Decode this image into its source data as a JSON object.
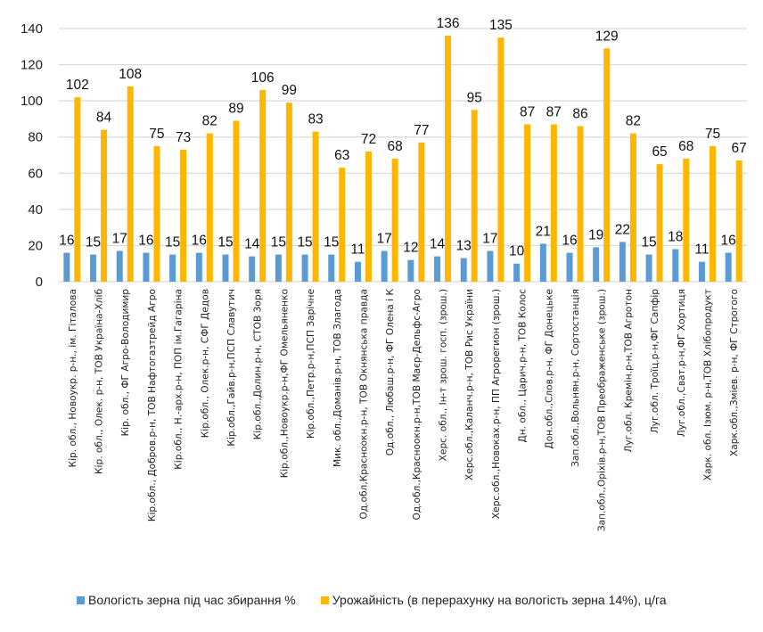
{
  "chart_data": {
    "type": "bar",
    "title": "",
    "xlabel": "",
    "ylabel": "",
    "ylim": [
      0,
      140
    ],
    "yticks": [
      0,
      20,
      40,
      60,
      80,
      100,
      120,
      140
    ],
    "grid": true,
    "legend_position": "bottom",
    "categories": [
      "Кір. обл., Новоукр. р-н., ім. Гіталова",
      "Кір. обл., Олек. р-н, ТОВ Україна-Хліб",
      "Кір. обл., ФГ Агро-Володимир",
      "Кір.обл., Добров.р-н, ТОВ Нафтогазтрейд Агро",
      "Кір.обл., Н.-арх.р-н, ПОП ім.Гагаріна",
      "Кір.обл., Олек.р-н, СФГ Дедов",
      "Кір.обл.,Гайв.р-н,ПСП Славутич",
      "Кір.обл.,Долин.р-н, СТОВ Зоря",
      "Кір.обл.,Новоукр.р-н,ФГ Омельяненко",
      "Кір.обл.,Петр.р-н,ПСП Зарічне",
      "Мик. обл.,Доманів.р-н, ТОВ Злагода",
      "Од.обл,Красноокн.р-н, ТОВ Окнянська правда",
      "Од.обл., Любаш.р-н, ФГ Олена і К",
      "Од.обл.,Красноокн.р-н,ТОВ Маєр-Дельфс-Агро",
      "Херс. обл., Ін-т зрош. госп. (зрош.)",
      "Херс.обл.,Каланч.р-н, ТОВ Рис України",
      "Херс.обл.,Новокax.р-н, ПП Агрорегион (зрош.)",
      "Дн. обл., Царич.р-н, ТОВ Колос",
      "Дон.обл.,Слов.р-н, ФГ Донецьке",
      "Зап.обл.,Вольнян.р-н, Сортостанція",
      "Зап.обл.,Оріхів.р-н,ТОВ Преображенське (зрош.)",
      "Луг.обл. Кремін.р-н,ТОВ Агротон",
      "Луг.обл. Троїц.р-н,ФГ Сапфір",
      "Луг.обл.,Сват.р-н,ФГ Хортиця",
      "Харк. обл. Ізюм. р-н,ТОВ Хлібопродукт",
      "Харк.обл.,Зміев. р-н, ФГ Строгого"
    ],
    "series": [
      {
        "name": "Вологість зерна під час збирання %",
        "color": "#5b9bd5",
        "values": [
          16,
          15,
          17,
          16,
          15,
          16,
          15,
          14,
          15,
          15,
          15,
          11,
          17,
          12,
          14,
          13,
          17,
          10,
          21,
          16,
          19,
          22,
          15,
          18,
          11,
          16
        ]
      },
      {
        "name": "Урожайність  (в перерахунку на вологість зерна 14%), ц/га",
        "color": "#ffb600",
        "values": [
          102,
          84,
          108,
          75,
          73,
          82,
          89,
          106,
          99,
          83,
          63,
          72,
          68,
          77,
          136,
          95,
          135,
          87,
          87,
          86,
          129,
          82,
          65,
          68,
          75,
          67
        ]
      }
    ]
  }
}
